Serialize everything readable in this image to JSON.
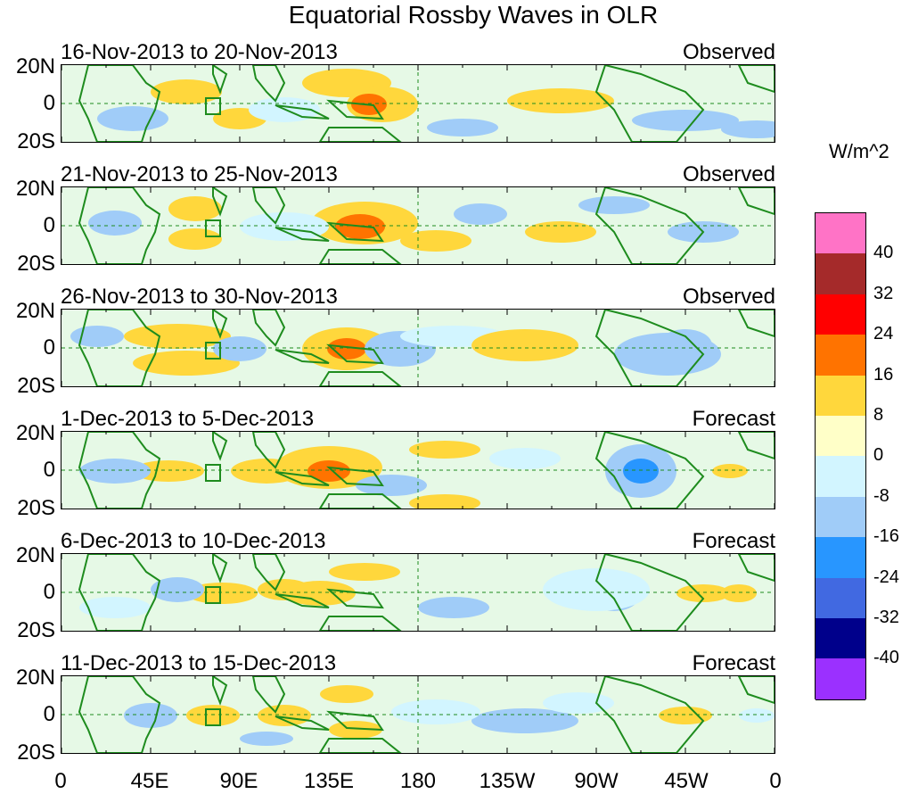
{
  "title": "Equatorial Rossby Waves in OLR",
  "units": "W/m^2",
  "lat_labels": [
    "20N",
    "0",
    "20S"
  ],
  "lon_labels": [
    "0",
    "45E",
    "90E",
    "135E",
    "180",
    "135W",
    "90W",
    "45W",
    "0"
  ],
  "panels": [
    {
      "range": "16-Nov-2013 to 20-Nov-2013",
      "status": "Observed"
    },
    {
      "range": "21-Nov-2013 to 25-Nov-2013",
      "status": "Observed"
    },
    {
      "range": "26-Nov-2013 to 30-Nov-2013",
      "status": "Observed"
    },
    {
      "range": "1-Dec-2013 to 5-Dec-2013",
      "status": "Forecast"
    },
    {
      "range": "6-Dec-2013 to 10-Dec-2013",
      "status": "Forecast"
    },
    {
      "range": "11-Dec-2013 to 15-Dec-2013",
      "status": "Forecast"
    }
  ],
  "colorbar": {
    "labels": [
      "40",
      "32",
      "24",
      "16",
      "8",
      "0",
      "-8",
      "-16",
      "-24",
      "-32",
      "-40"
    ],
    "colors": [
      "#ff73c6",
      "#a52a2a",
      "#ff0000",
      "#ff7300",
      "#ffd73c",
      "#ffffc8",
      "#d2f5ff",
      "#a0ccf8",
      "#2896ff",
      "#4169e1",
      "#00008b",
      "#9b30ff"
    ]
  }
}
